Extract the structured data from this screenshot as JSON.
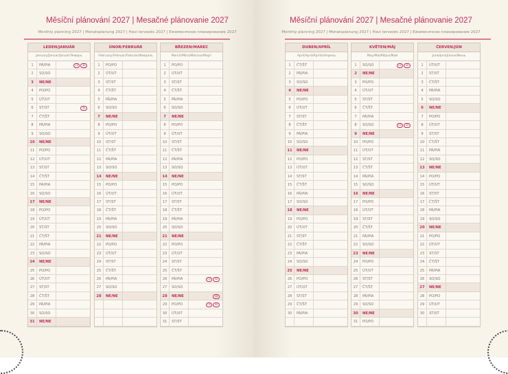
{
  "title": "Měsíční plánování 2027 | Mesačné plánovanie 2027",
  "subtitle": "Monthly planning 2027 | Monatsplanung 2027 | Havi tervezés 2027 | Ежемесячное планирование 2027",
  "weekdays": [
    "PO/PO",
    "ÚT/UT",
    "ST/ST",
    "ČT/ŠT",
    "PÁ/PIA",
    "SO/SO",
    "NE/NE"
  ],
  "colors": {
    "accent": "#c02a5c",
    "page": "#f8f4ea"
  },
  "months": [
    {
      "name": "LEDEN/JANUÁR",
      "sub": "January/Januar/Január/Январь",
      "days": 31,
      "start": 4,
      "holidays": {
        "1": [
          "CZ",
          "SK"
        ],
        "6": [
          "SK"
        ]
      }
    },
    {
      "name": "ÚNOR/FEBRUÁR",
      "sub": "February/Februar/Február/Февраль",
      "days": 28,
      "start": 0,
      "holidays": {}
    },
    {
      "name": "BŘEZEN/MAREC",
      "sub": "March/März/Március/Март",
      "days": 31,
      "start": 0,
      "holidays": {
        "26": [
          "CZ",
          "SK"
        ],
        "28": [
          "SK"
        ],
        "29": [
          "CZ",
          "SK"
        ]
      }
    },
    {
      "name": "DUBEN/APRÍL",
      "sub": "April/April/Április/Апрель",
      "days": 30,
      "start": 3,
      "holidays": {}
    },
    {
      "name": "KVĚTEN/MÁJ",
      "sub": "May/Mai/Május/Май",
      "days": 31,
      "start": 5,
      "holidays": {
        "1": [
          "CZ",
          "SK"
        ],
        "8": [
          "CZ",
          "SK"
        ]
      }
    },
    {
      "name": "ČERVEN/JÚN",
      "sub": "June/Juni/Június/Июнь",
      "days": 30,
      "start": 1,
      "holidays": {}
    }
  ]
}
